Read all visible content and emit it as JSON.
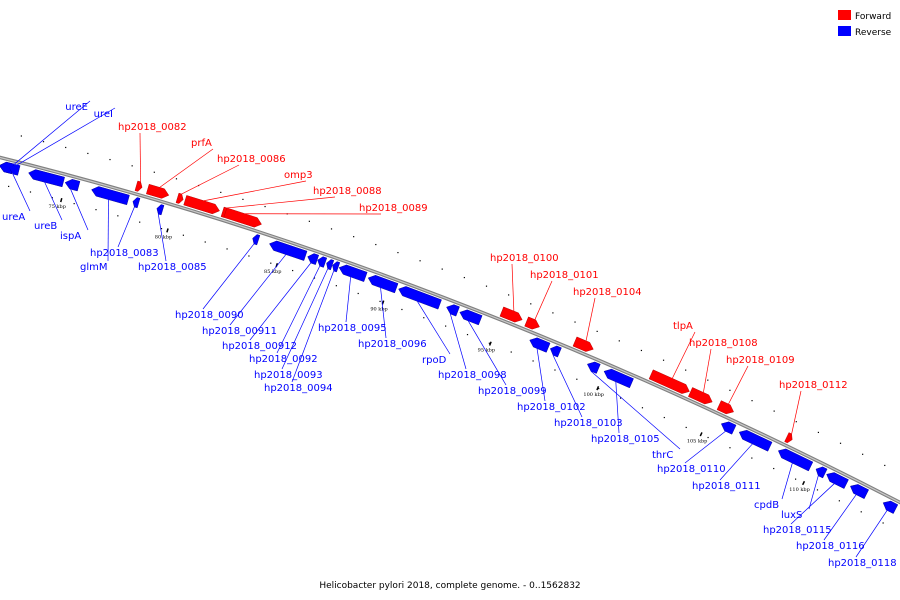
{
  "caption": "Helicobacter pylori 2018, complete genome. - 0..1562832",
  "legend": [
    {
      "label": "Forward",
      "color": "#ff0000"
    },
    {
      "label": "Reverse",
      "color": "#0000ff"
    }
  ],
  "scale_ticks": [
    "75 kbp",
    "80 kbp",
    "85 kbp",
    "90 kbp",
    "95 kbp",
    "100 kbp",
    "105 kbp",
    "110 kbp"
  ],
  "genes": [
    {
      "name": "ureE",
      "strand": "reverse"
    },
    {
      "name": "ureI",
      "strand": "reverse"
    },
    {
      "name": "ureA",
      "strand": "reverse"
    },
    {
      "name": "ureB",
      "strand": "reverse"
    },
    {
      "name": "ispA",
      "strand": "reverse"
    },
    {
      "name": "glmM",
      "strand": "reverse"
    },
    {
      "name": "hp2018_0082",
      "strand": "forward"
    },
    {
      "name": "prfA",
      "strand": "forward"
    },
    {
      "name": "hp2018_0083",
      "strand": "reverse"
    },
    {
      "name": "hp2018_0085",
      "strand": "reverse"
    },
    {
      "name": "hp2018_0086",
      "strand": "forward"
    },
    {
      "name": "omp3",
      "strand": "forward"
    },
    {
      "name": "hp2018_0088",
      "strand": "forward"
    },
    {
      "name": "hp2018_0089",
      "strand": "forward"
    },
    {
      "name": "hp2018_0090",
      "strand": "reverse"
    },
    {
      "name": "hp2018_00911",
      "strand": "reverse"
    },
    {
      "name": "hp2018_00912",
      "strand": "reverse"
    },
    {
      "name": "hp2018_0092",
      "strand": "reverse"
    },
    {
      "name": "hp2018_0093",
      "strand": "reverse"
    },
    {
      "name": "hp2018_0094",
      "strand": "reverse"
    },
    {
      "name": "hp2018_0095",
      "strand": "reverse"
    },
    {
      "name": "hp2018_0096",
      "strand": "reverse"
    },
    {
      "name": "rpoD",
      "strand": "reverse"
    },
    {
      "name": "hp2018_0098",
      "strand": "reverse"
    },
    {
      "name": "hp2018_0099",
      "strand": "reverse"
    },
    {
      "name": "hp2018_0100",
      "strand": "forward"
    },
    {
      "name": "hp2018_0101",
      "strand": "forward"
    },
    {
      "name": "hp2018_0102",
      "strand": "reverse"
    },
    {
      "name": "hp2018_0103",
      "strand": "reverse"
    },
    {
      "name": "hp2018_0104",
      "strand": "forward"
    },
    {
      "name": "hp2018_0105",
      "strand": "reverse"
    },
    {
      "name": "thrC",
      "strand": "reverse"
    },
    {
      "name": "tlpA",
      "strand": "forward"
    },
    {
      "name": "hp2018_0108",
      "strand": "forward"
    },
    {
      "name": "hp2018_0109",
      "strand": "forward"
    },
    {
      "name": "hp2018_0110",
      "strand": "reverse"
    },
    {
      "name": "hp2018_0111",
      "strand": "reverse"
    },
    {
      "name": "hp2018_0112",
      "strand": "forward"
    },
    {
      "name": "cpdB",
      "strand": "reverse"
    },
    {
      "name": "luxS",
      "strand": "reverse"
    },
    {
      "name": "hp2018_0115",
      "strand": "reverse"
    },
    {
      "name": "hp2018_0116",
      "strand": "reverse"
    },
    {
      "name": "hp2018_0118",
      "strand": "reverse"
    }
  ]
}
